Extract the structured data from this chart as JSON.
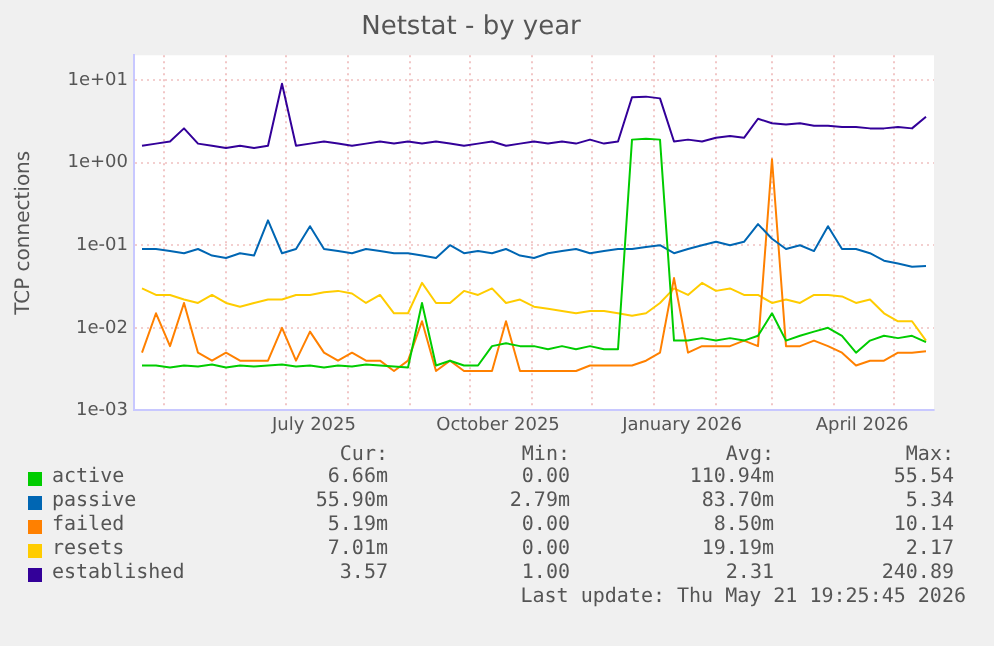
{
  "chart_data": {
    "type": "line",
    "title": "Netstat - by year",
    "ylabel": "TCP connections",
    "x": [
      "2025-04-20",
      "2025-04-27",
      "2025-05-04",
      "2025-05-11",
      "2025-05-18",
      "2025-05-25",
      "2025-06-01",
      "2025-06-08",
      "2025-06-15",
      "2025-06-22",
      "2025-06-29",
      "2025-07-06",
      "2025-07-13",
      "2025-07-20",
      "2025-07-27",
      "2025-08-03",
      "2025-08-10",
      "2025-08-17",
      "2025-08-24",
      "2025-08-31",
      "2025-09-07",
      "2025-09-14",
      "2025-09-21",
      "2025-09-28",
      "2025-10-05",
      "2025-10-12",
      "2025-10-19",
      "2025-10-26",
      "2025-11-02",
      "2025-11-09",
      "2025-11-16",
      "2025-11-23",
      "2025-11-30",
      "2025-12-07",
      "2025-12-14",
      "2025-12-21",
      "2025-12-28",
      "2026-01-04",
      "2026-01-11",
      "2026-01-18",
      "2026-01-25",
      "2026-02-01",
      "2026-02-08",
      "2026-02-15",
      "2026-02-22",
      "2026-03-01",
      "2026-03-08",
      "2026-03-15",
      "2026-03-22",
      "2026-03-29",
      "2026-04-05",
      "2026-04-12",
      "2026-04-19",
      "2026-04-26",
      "2026-05-03",
      "2026-05-10",
      "2026-05-17"
    ],
    "series": [
      {
        "name": "active",
        "color": "#00cc00",
        "values": [
          0.0035,
          0.0035,
          0.0033,
          0.0035,
          0.0034,
          0.0036,
          0.0033,
          0.0035,
          0.0034,
          0.0035,
          0.0036,
          0.0034,
          0.0035,
          0.0033,
          0.0035,
          0.0034,
          0.0036,
          0.0035,
          0.0034,
          0.0033,
          0.02,
          0.0035,
          0.004,
          0.0035,
          0.0035,
          0.006,
          0.0065,
          0.006,
          0.006,
          0.0055,
          0.006,
          0.0055,
          0.006,
          0.0055,
          0.0055,
          1.9,
          1.95,
          1.9,
          0.007,
          0.007,
          0.0075,
          0.007,
          0.0075,
          0.007,
          0.008,
          0.015,
          0.007,
          0.008,
          0.009,
          0.01,
          0.008,
          0.005,
          0.007,
          0.008,
          0.0075,
          0.008,
          0.0067
        ]
      },
      {
        "name": "passive",
        "color": "#0066b3",
        "values": [
          0.09,
          0.09,
          0.085,
          0.08,
          0.09,
          0.075,
          0.07,
          0.08,
          0.075,
          0.2,
          0.08,
          0.09,
          0.17,
          0.09,
          0.085,
          0.08,
          0.09,
          0.085,
          0.08,
          0.08,
          0.075,
          0.07,
          0.1,
          0.08,
          0.085,
          0.08,
          0.09,
          0.075,
          0.07,
          0.08,
          0.085,
          0.09,
          0.08,
          0.085,
          0.09,
          0.09,
          0.095,
          0.1,
          0.08,
          0.09,
          0.1,
          0.11,
          0.1,
          0.11,
          0.18,
          0.12,
          0.09,
          0.1,
          0.085,
          0.17,
          0.09,
          0.09,
          0.08,
          0.065,
          0.06,
          0.055,
          0.056
        ]
      },
      {
        "name": "failed",
        "color": "#ff8000",
        "values": [
          0.005,
          0.015,
          0.006,
          0.02,
          0.005,
          0.004,
          0.005,
          0.004,
          0.004,
          0.004,
          0.01,
          0.004,
          0.009,
          0.005,
          0.004,
          0.005,
          0.004,
          0.004,
          0.003,
          0.004,
          0.012,
          0.003,
          0.004,
          0.003,
          0.003,
          0.003,
          0.012,
          0.003,
          0.003,
          0.003,
          0.003,
          0.003,
          0.0035,
          0.0035,
          0.0035,
          0.0035,
          0.004,
          0.005,
          0.04,
          0.005,
          0.006,
          0.006,
          0.006,
          0.007,
          0.006,
          1.1,
          0.006,
          0.006,
          0.007,
          0.006,
          0.005,
          0.0035,
          0.004,
          0.004,
          0.005,
          0.005,
          0.0052
        ]
      },
      {
        "name": "resets",
        "color": "#ffcc00",
        "values": [
          0.03,
          0.025,
          0.025,
          0.022,
          0.02,
          0.025,
          0.02,
          0.018,
          0.02,
          0.022,
          0.022,
          0.025,
          0.025,
          0.027,
          0.028,
          0.026,
          0.02,
          0.025,
          0.015,
          0.015,
          0.035,
          0.02,
          0.02,
          0.028,
          0.025,
          0.03,
          0.02,
          0.022,
          0.018,
          0.017,
          0.016,
          0.015,
          0.016,
          0.016,
          0.015,
          0.014,
          0.015,
          0.02,
          0.03,
          0.025,
          0.035,
          0.028,
          0.03,
          0.025,
          0.025,
          0.02,
          0.022,
          0.02,
          0.025,
          0.025,
          0.024,
          0.02,
          0.022,
          0.015,
          0.012,
          0.012,
          0.007
        ]
      },
      {
        "name": "established",
        "color": "#330099",
        "values": [
          1.6,
          1.7,
          1.8,
          2.6,
          1.7,
          1.6,
          1.5,
          1.6,
          1.5,
          1.6,
          9.0,
          1.6,
          1.7,
          1.8,
          1.7,
          1.6,
          1.7,
          1.8,
          1.7,
          1.8,
          1.7,
          1.8,
          1.7,
          1.6,
          1.7,
          1.8,
          1.6,
          1.7,
          1.8,
          1.7,
          1.8,
          1.7,
          1.9,
          1.7,
          1.8,
          6.2,
          6.3,
          6.0,
          1.8,
          1.9,
          1.8,
          2.0,
          2.1,
          2.0,
          3.4,
          3.0,
          2.9,
          3.0,
          2.8,
          2.8,
          2.7,
          2.7,
          2.6,
          2.6,
          2.7,
          2.6,
          3.6
        ]
      }
    ],
    "xlim": [
      "2025-04-16",
      "2026-05-21"
    ],
    "xticks": [
      {
        "value": "2025-05-01",
        "label": null
      },
      {
        "value": "2025-06-01",
        "label": null
      },
      {
        "value": "2025-07-01",
        "label": null
      },
      {
        "value": "2025-07-15",
        "label": "July 2025"
      },
      {
        "value": "2025-08-01",
        "label": null
      },
      {
        "value": "2025-09-01",
        "label": null
      },
      {
        "value": "2025-10-01",
        "label": null
      },
      {
        "value": "2025-10-15",
        "label": "October 2025"
      },
      {
        "value": "2025-11-01",
        "label": null
      },
      {
        "value": "2025-12-01",
        "label": null
      },
      {
        "value": "2026-01-01",
        "label": null
      },
      {
        "value": "2026-01-15",
        "label": "January 2026"
      },
      {
        "value": "2026-02-01",
        "label": null
      },
      {
        "value": "2026-03-01",
        "label": null
      },
      {
        "value": "2026-04-01",
        "label": null
      },
      {
        "value": "2026-04-15",
        "label": "April 2026"
      },
      {
        "value": "2026-05-01",
        "label": null
      }
    ],
    "ylim": [
      0.001,
      20
    ],
    "yticks": [
      {
        "value": 0.001,
        "label": "1e-03"
      },
      {
        "value": 0.01,
        "label": "1e-02"
      },
      {
        "value": 0.1,
        "label": "1e-01"
      },
      {
        "value": 1,
        "label": "1e+00"
      },
      {
        "value": 10,
        "label": "1e+01"
      }
    ],
    "log": "y",
    "grid": true,
    "legend": "bottom",
    "marker": "none",
    "line_style": "solid",
    "annotations": [
      "Cur:",
      "Min:",
      "Avg:",
      "Max:",
      "6.66m",
      "0.00",
      "110.94m",
      "55.54",
      "55.90m",
      "2.79m",
      "83.70m",
      "5.34",
      "5.19m",
      "0.00",
      "8.50m",
      "10.14",
      "7.01m",
      "0.00",
      "19.19m",
      "2.17",
      "3.57",
      "1.00",
      "2.31",
      "240.89",
      "Last update: Thu May 21 19:25:45 2026"
    ]
  }
}
